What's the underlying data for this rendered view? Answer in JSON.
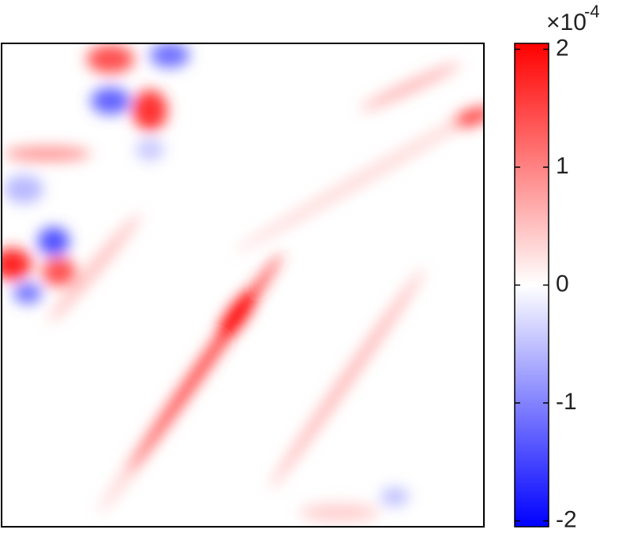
{
  "chart_data": {
    "type": "heatmap",
    "colorbar": {
      "lim": [
        -2.05,
        2.05
      ],
      "ticks": [
        -2,
        -1,
        0,
        1,
        2
      ],
      "colormap": [
        "#0000ff",
        "#ffffff",
        "#ff0000"
      ],
      "scale_base": "×10",
      "scale_exponent": "-4"
    }
  }
}
